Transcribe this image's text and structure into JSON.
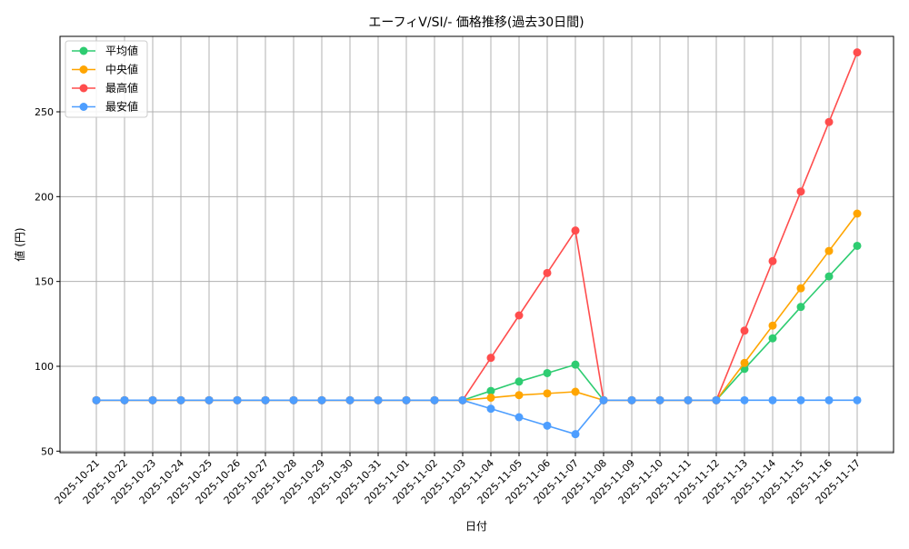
{
  "chart_data": {
    "type": "line",
    "title": "エーフィV/SI/- 価格推移(過去30日間)",
    "xlabel": "日付",
    "ylabel": "値 (円)",
    "ylim": [
      48,
      295
    ],
    "yticks": [
      50,
      100,
      150,
      200,
      250
    ],
    "grid": true,
    "legend_placement": "top-left",
    "categories": [
      "2025-10-21",
      "2025-10-22",
      "2025-10-23",
      "2025-10-24",
      "2025-10-25",
      "2025-10-26",
      "2025-10-27",
      "2025-10-28",
      "2025-10-29",
      "2025-10-30",
      "2025-10-31",
      "2025-11-01",
      "2025-11-02",
      "2025-11-03",
      "2025-11-04",
      "2025-11-05",
      "2025-11-06",
      "2025-11-07",
      "2025-11-08",
      "2025-11-09",
      "2025-11-10",
      "2025-11-11",
      "2025-11-12",
      "2025-11-13",
      "2025-11-14",
      "2025-11-15",
      "2025-11-16",
      "2025-11-17"
    ],
    "series": [
      {
        "name": "平均値",
        "color": "#2ecc71",
        "values": [
          80,
          80,
          80,
          80,
          80,
          80,
          80,
          80,
          80,
          80,
          80,
          80,
          80,
          80,
          85.5,
          91,
          96,
          101,
          80,
          80,
          80,
          80,
          80,
          98.5,
          116.5,
          135,
          153,
          171
        ]
      },
      {
        "name": "中央値",
        "color": "#ffa500",
        "values": [
          80,
          80,
          80,
          80,
          80,
          80,
          80,
          80,
          80,
          80,
          80,
          80,
          80,
          80,
          81.5,
          83,
          84,
          85,
          80,
          80,
          80,
          80,
          80,
          102,
          124,
          146,
          168,
          190
        ]
      },
      {
        "name": "最高値",
        "color": "#ff4d4d",
        "values": [
          80,
          80,
          80,
          80,
          80,
          80,
          80,
          80,
          80,
          80,
          80,
          80,
          80,
          80,
          105,
          130,
          155,
          180,
          80,
          80,
          80,
          80,
          80,
          121,
          162,
          203,
          244,
          285
        ]
      },
      {
        "name": "最安値",
        "color": "#4d9eff",
        "values": [
          80,
          80,
          80,
          80,
          80,
          80,
          80,
          80,
          80,
          80,
          80,
          80,
          80,
          80,
          75,
          70,
          65,
          60,
          80,
          80,
          80,
          80,
          80,
          80,
          80,
          80,
          80,
          80
        ]
      }
    ]
  }
}
